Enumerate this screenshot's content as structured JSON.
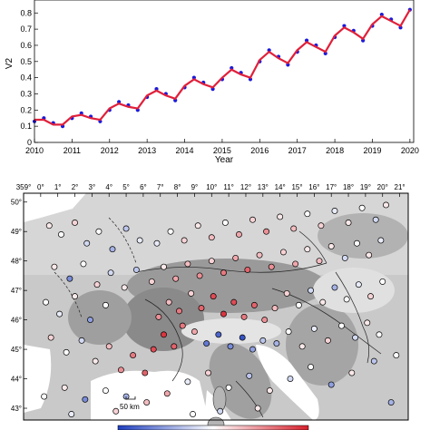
{
  "chart_data": [
    {
      "type": "scatter",
      "xlabel": "Year",
      "ylabel": "V2",
      "xlim": [
        2010,
        2020.1
      ],
      "ylim": [
        0.0,
        0.88
      ],
      "x_ticks": [
        "2010",
        "2011",
        "2012",
        "2013",
        "2014",
        "2015",
        "2016",
        "2017",
        "2018",
        "2019",
        "2020"
      ],
      "y_ticks": [
        "0",
        "0.1",
        "0.2",
        "0.3",
        "0.4",
        "0.5",
        "0.6",
        "0.7",
        "0.8"
      ],
      "grid": false,
      "series": [
        {
          "color": "#1a1ad9",
          "marker": "dot",
          "x": [
            2010.0,
            2010.25,
            2010.5,
            2010.75,
            2011.0,
            2011.25,
            2011.5,
            2011.75,
            2012.0,
            2012.25,
            2012.5,
            2012.75,
            2013.0,
            2013.25,
            2013.5,
            2013.75,
            2014.0,
            2014.25,
            2014.5,
            2014.75,
            2015.0,
            2015.25,
            2015.5,
            2015.75,
            2016.0,
            2016.25,
            2016.5,
            2016.75,
            2017.0,
            2017.25,
            2017.5,
            2017.75,
            2018.0,
            2018.25,
            2018.5,
            2018.75,
            2019.0,
            2019.25,
            2019.5,
            2019.75,
            2020.0
          ],
          "y": [
            0.13,
            0.15,
            0.12,
            0.1,
            0.15,
            0.18,
            0.16,
            0.13,
            0.2,
            0.25,
            0.23,
            0.2,
            0.28,
            0.33,
            0.3,
            0.26,
            0.34,
            0.4,
            0.37,
            0.33,
            0.39,
            0.46,
            0.43,
            0.39,
            0.5,
            0.57,
            0.53,
            0.48,
            0.56,
            0.63,
            0.6,
            0.55,
            0.65,
            0.72,
            0.69,
            0.63,
            0.72,
            0.79,
            0.76,
            0.71,
            0.82
          ]
        },
        {
          "color": "#e0203a",
          "marker": "line",
          "x": [
            2010.0,
            2010.25,
            2010.5,
            2010.75,
            2011.0,
            2011.25,
            2011.5,
            2011.75,
            2012.0,
            2012.25,
            2012.5,
            2012.75,
            2013.0,
            2013.25,
            2013.5,
            2013.75,
            2014.0,
            2014.25,
            2014.5,
            2014.75,
            2015.0,
            2015.25,
            2015.5,
            2015.75,
            2016.0,
            2016.25,
            2016.5,
            2016.75,
            2017.0,
            2017.25,
            2017.5,
            2017.75,
            2018.0,
            2018.25,
            2018.5,
            2018.75,
            2019.0,
            2019.25,
            2019.5,
            2019.75,
            2020.0
          ],
          "y": [
            0.14,
            0.14,
            0.11,
            0.11,
            0.16,
            0.17,
            0.15,
            0.14,
            0.21,
            0.24,
            0.22,
            0.21,
            0.29,
            0.32,
            0.29,
            0.27,
            0.35,
            0.39,
            0.36,
            0.34,
            0.4,
            0.45,
            0.42,
            0.4,
            0.51,
            0.56,
            0.52,
            0.49,
            0.57,
            0.62,
            0.59,
            0.56,
            0.66,
            0.71,
            0.68,
            0.64,
            0.73,
            0.78,
            0.75,
            0.72,
            0.82
          ]
        }
      ]
    },
    {
      "type": "scatter",
      "title": "",
      "x_ticks": [
        "359°",
        "0°",
        "1°",
        "2°",
        "3°",
        "4°",
        "5°",
        "6°",
        "7°",
        "8°",
        "9°",
        "10°",
        "11°",
        "12°",
        "13°",
        "14°",
        "15°",
        "16°",
        "17°",
        "18°",
        "19°",
        "20°",
        "21°"
      ],
      "y_ticks": [
        "50°",
        "49°",
        "48°",
        "47°",
        "46°",
        "45°",
        "44°",
        "43°"
      ],
      "xlim": [
        359,
        21.5
      ],
      "ylim": [
        42.6,
        50.3
      ],
      "scale_bar_label": "50 km",
      "colorscale": [
        "#1f3fbf",
        "#ffffff",
        "#d6202c"
      ],
      "stations": [
        {
          "lon": 0.5,
          "lat": 49.2,
          "v": 0.1
        },
        {
          "lon": 1.2,
          "lat": 48.9,
          "v": 0.0
        },
        {
          "lon": 2.0,
          "lat": 49.3,
          "v": 0.2
        },
        {
          "lon": 2.7,
          "lat": 48.6,
          "v": -0.2
        },
        {
          "lon": 3.4,
          "lat": 49.0,
          "v": 0.0
        },
        {
          "lon": 4.2,
          "lat": 48.4,
          "v": -0.4
        },
        {
          "lon": 5.0,
          "lat": 49.1,
          "v": -0.3
        },
        {
          "lon": 5.8,
          "lat": 48.7,
          "v": -0.1
        },
        {
          "lon": 0.8,
          "lat": 47.8,
          "v": 0.1
        },
        {
          "lon": 1.7,
          "lat": 47.4,
          "v": -0.6
        },
        {
          "lon": 2.5,
          "lat": 47.9,
          "v": 0.0
        },
        {
          "lon": 3.3,
          "lat": 47.2,
          "v": 0.2
        },
        {
          "lon": 4.1,
          "lat": 47.6,
          "v": -0.2
        },
        {
          "lon": 4.9,
          "lat": 47.1,
          "v": 0.1
        },
        {
          "lon": 5.6,
          "lat": 47.7,
          "v": -0.3
        },
        {
          "lon": 0.3,
          "lat": 46.6,
          "v": 0.0
        },
        {
          "lon": 1.1,
          "lat": 46.2,
          "v": -0.1
        },
        {
          "lon": 2.0,
          "lat": 46.8,
          "v": 0.1
        },
        {
          "lon": 2.9,
          "lat": 46.0,
          "v": -0.5
        },
        {
          "lon": 3.8,
          "lat": 46.5,
          "v": 0.0
        },
        {
          "lon": 0.6,
          "lat": 45.4,
          "v": 0.2
        },
        {
          "lon": 1.5,
          "lat": 44.9,
          "v": 0.0
        },
        {
          "lon": 2.4,
          "lat": 45.3,
          "v": -0.2
        },
        {
          "lon": 3.2,
          "lat": 44.6,
          "v": 0.1
        },
        {
          "lon": 4.0,
          "lat": 45.1,
          "v": 0.3
        },
        {
          "lon": 4.7,
          "lat": 44.3,
          "v": 0.5
        },
        {
          "lon": 5.4,
          "lat": 44.8,
          "v": 0.6
        },
        {
          "lon": 6.1,
          "lat": 44.2,
          "v": 0.7
        },
        {
          "lon": 6.6,
          "lat": 45.0,
          "v": 0.8
        },
        {
          "lon": 7.2,
          "lat": 45.5,
          "v": 0.9
        },
        {
          "lon": 7.8,
          "lat": 45.1,
          "v": 0.7
        },
        {
          "lon": 8.3,
          "lat": 45.8,
          "v": 0.6
        },
        {
          "lon": 6.9,
          "lat": 46.1,
          "v": 0.5
        },
        {
          "lon": 7.5,
          "lat": 46.6,
          "v": 0.3
        },
        {
          "lon": 8.1,
          "lat": 46.3,
          "v": 0.6
        },
        {
          "lon": 8.8,
          "lat": 46.9,
          "v": 0.2
        },
        {
          "lon": 9.4,
          "lat": 46.4,
          "v": 0.7
        },
        {
          "lon": 10.1,
          "lat": 46.8,
          "v": 0.8
        },
        {
          "lon": 10.7,
          "lat": 46.2,
          "v": 0.9
        },
        {
          "lon": 11.3,
          "lat": 46.6,
          "v": 0.8
        },
        {
          "lon": 11.9,
          "lat": 46.1,
          "v": 0.6
        },
        {
          "lon": 12.5,
          "lat": 46.5,
          "v": 0.7
        },
        {
          "lon": 13.1,
          "lat": 46.0,
          "v": 0.5
        },
        {
          "lon": 13.7,
          "lat": 46.4,
          "v": 0.3
        },
        {
          "lon": 9.0,
          "lat": 45.6,
          "v": 0.4
        },
        {
          "lon": 9.7,
          "lat": 45.2,
          "v": -0.7
        },
        {
          "lon": 10.4,
          "lat": 45.5,
          "v": -0.8
        },
        {
          "lon": 11.1,
          "lat": 45.1,
          "v": -0.6
        },
        {
          "lon": 11.8,
          "lat": 45.4,
          "v": -0.9
        },
        {
          "lon": 12.4,
          "lat": 45.0,
          "v": -0.5
        },
        {
          "lon": 13.0,
          "lat": 45.3,
          "v": -0.3
        },
        {
          "lon": 6.5,
          "lat": 47.3,
          "v": 0.2
        },
        {
          "lon": 7.2,
          "lat": 47.8,
          "v": 0.1
        },
        {
          "lon": 7.9,
          "lat": 47.4,
          "v": 0.4
        },
        {
          "lon": 8.6,
          "lat": 47.9,
          "v": 0.3
        },
        {
          "lon": 9.3,
          "lat": 47.5,
          "v": 0.5
        },
        {
          "lon": 10.0,
          "lat": 48.0,
          "v": 0.2
        },
        {
          "lon": 10.7,
          "lat": 47.6,
          "v": 0.6
        },
        {
          "lon": 11.4,
          "lat": 48.1,
          "v": 0.4
        },
        {
          "lon": 12.1,
          "lat": 47.7,
          "v": 0.7
        },
        {
          "lon": 12.8,
          "lat": 48.2,
          "v": 0.3
        },
        {
          "lon": 13.5,
          "lat": 47.8,
          "v": 0.5
        },
        {
          "lon": 14.2,
          "lat": 48.3,
          "v": 0.2
        },
        {
          "lon": 14.9,
          "lat": 47.9,
          "v": 0.4
        },
        {
          "lon": 15.6,
          "lat": 48.4,
          "v": 0.1
        },
        {
          "lon": 16.3,
          "lat": 48.0,
          "v": 0.3
        },
        {
          "lon": 6.8,
          "lat": 48.6,
          "v": -0.1
        },
        {
          "lon": 7.6,
          "lat": 49.0,
          "v": 0.0
        },
        {
          "lon": 8.4,
          "lat": 48.7,
          "v": 0.2
        },
        {
          "lon": 9.2,
          "lat": 49.2,
          "v": 0.1
        },
        {
          "lon": 10.0,
          "lat": 48.8,
          "v": 0.3
        },
        {
          "lon": 10.8,
          "lat": 49.3,
          "v": 0.0
        },
        {
          "lon": 11.6,
          "lat": 48.9,
          "v": 0.4
        },
        {
          "lon": 12.4,
          "lat": 49.4,
          "v": 0.2
        },
        {
          "lon": 13.2,
          "lat": 49.0,
          "v": 0.5
        },
        {
          "lon": 14.0,
          "lat": 49.5,
          "v": 0.1
        },
        {
          "lon": 14.8,
          "lat": 49.1,
          "v": 0.3
        },
        {
          "lon": 15.6,
          "lat": 49.6,
          "v": 0.0
        },
        {
          "lon": 16.4,
          "lat": 49.2,
          "v": 0.2
        },
        {
          "lon": 17.2,
          "lat": 49.7,
          "v": -0.1
        },
        {
          "lon": 18.0,
          "lat": 49.3,
          "v": 0.1
        },
        {
          "lon": 18.8,
          "lat": 49.8,
          "v": 0.0
        },
        {
          "lon": 19.6,
          "lat": 49.4,
          "v": -0.2
        },
        {
          "lon": 20.2,
          "lat": 49.9,
          "v": 0.1
        },
        {
          "lon": 14.4,
          "lat": 46.9,
          "v": 0.2
        },
        {
          "lon": 15.1,
          "lat": 46.5,
          "v": 0.0
        },
        {
          "lon": 15.8,
          "lat": 47.0,
          "v": -0.2
        },
        {
          "lon": 16.5,
          "lat": 46.6,
          "v": 0.1
        },
        {
          "lon": 17.2,
          "lat": 47.1,
          "v": -0.4
        },
        {
          "lon": 17.9,
          "lat": 46.7,
          "v": 0.0
        },
        {
          "lon": 18.6,
          "lat": 47.2,
          "v": -0.1
        },
        {
          "lon": 19.3,
          "lat": 46.8,
          "v": 0.2
        },
        {
          "lon": 20.0,
          "lat": 47.3,
          "v": 0.0
        },
        {
          "lon": 17.0,
          "lat": 48.5,
          "v": 0.1
        },
        {
          "lon": 17.8,
          "lat": 48.1,
          "v": -0.2
        },
        {
          "lon": 18.5,
          "lat": 48.6,
          "v": 0.0
        },
        {
          "lon": 19.2,
          "lat": 48.2,
          "v": 0.1
        },
        {
          "lon": 19.9,
          "lat": 48.7,
          "v": -0.1
        },
        {
          "lon": 13.8,
          "lat": 45.2,
          "v": -0.4
        },
        {
          "lon": 14.5,
          "lat": 45.6,
          "v": 0.0
        },
        {
          "lon": 15.3,
          "lat": 45.1,
          "v": 0.1
        },
        {
          "lon": 16.0,
          "lat": 45.7,
          "v": -0.1
        },
        {
          "lon": 16.8,
          "lat": 45.3,
          "v": 0.2
        },
        {
          "lon": 17.6,
          "lat": 45.8,
          "v": 0.0
        },
        {
          "lon": 18.4,
          "lat": 45.4,
          "v": -0.2
        },
        {
          "lon": 19.1,
          "lat": 45.9,
          "v": 0.1
        },
        {
          "lon": 19.8,
          "lat": 45.5,
          "v": 0.0
        },
        {
          "lon": 19.5,
          "lat": 44.6,
          "v": -0.3
        },
        {
          "lon": 18.2,
          "lat": 44.2,
          "v": 0.1
        },
        {
          "lon": 17.0,
          "lat": 43.8,
          "v": -0.5
        },
        {
          "lon": 15.8,
          "lat": 44.4,
          "v": 0.0
        },
        {
          "lon": 14.6,
          "lat": 44.0,
          "v": -0.2
        },
        {
          "lon": 13.4,
          "lat": 43.6,
          "v": 0.1
        },
        {
          "lon": 12.2,
          "lat": 44.1,
          "v": -0.3
        },
        {
          "lon": 11.0,
          "lat": 43.7,
          "v": 0.0
        },
        {
          "lon": 9.8,
          "lat": 44.2,
          "v": 0.2
        },
        {
          "lon": 8.6,
          "lat": 43.9,
          "v": -0.1
        },
        {
          "lon": 7.4,
          "lat": 43.5,
          "v": 0.4
        },
        {
          "lon": 6.2,
          "lat": 43.2,
          "v": 0.3
        },
        {
          "lon": 5.0,
          "lat": 43.4,
          "v": -0.4
        },
        {
          "lon": 3.8,
          "lat": 43.6,
          "v": 0.0
        },
        {
          "lon": 2.6,
          "lat": 43.3,
          "v": -0.6
        },
        {
          "lon": 1.4,
          "lat": 43.7,
          "v": 0.1
        },
        {
          "lon": 0.2,
          "lat": 43.4,
          "v": 0.0
        },
        {
          "lon": 20.5,
          "lat": 43.2,
          "v": -0.4
        },
        {
          "lon": 20.8,
          "lat": 44.8,
          "v": 0.0
        },
        {
          "lon": 12.7,
          "lat": 43.0,
          "v": 0.1
        },
        {
          "lon": 10.5,
          "lat": 42.9,
          "v": -0.2
        },
        {
          "lon": 8.9,
          "lat": 42.8,
          "v": 0.0
        },
        {
          "lon": 4.4,
          "lat": 42.9,
          "v": 0.2
        },
        {
          "lon": 1.8,
          "lat": 42.8,
          "v": -0.1
        }
      ]
    }
  ]
}
